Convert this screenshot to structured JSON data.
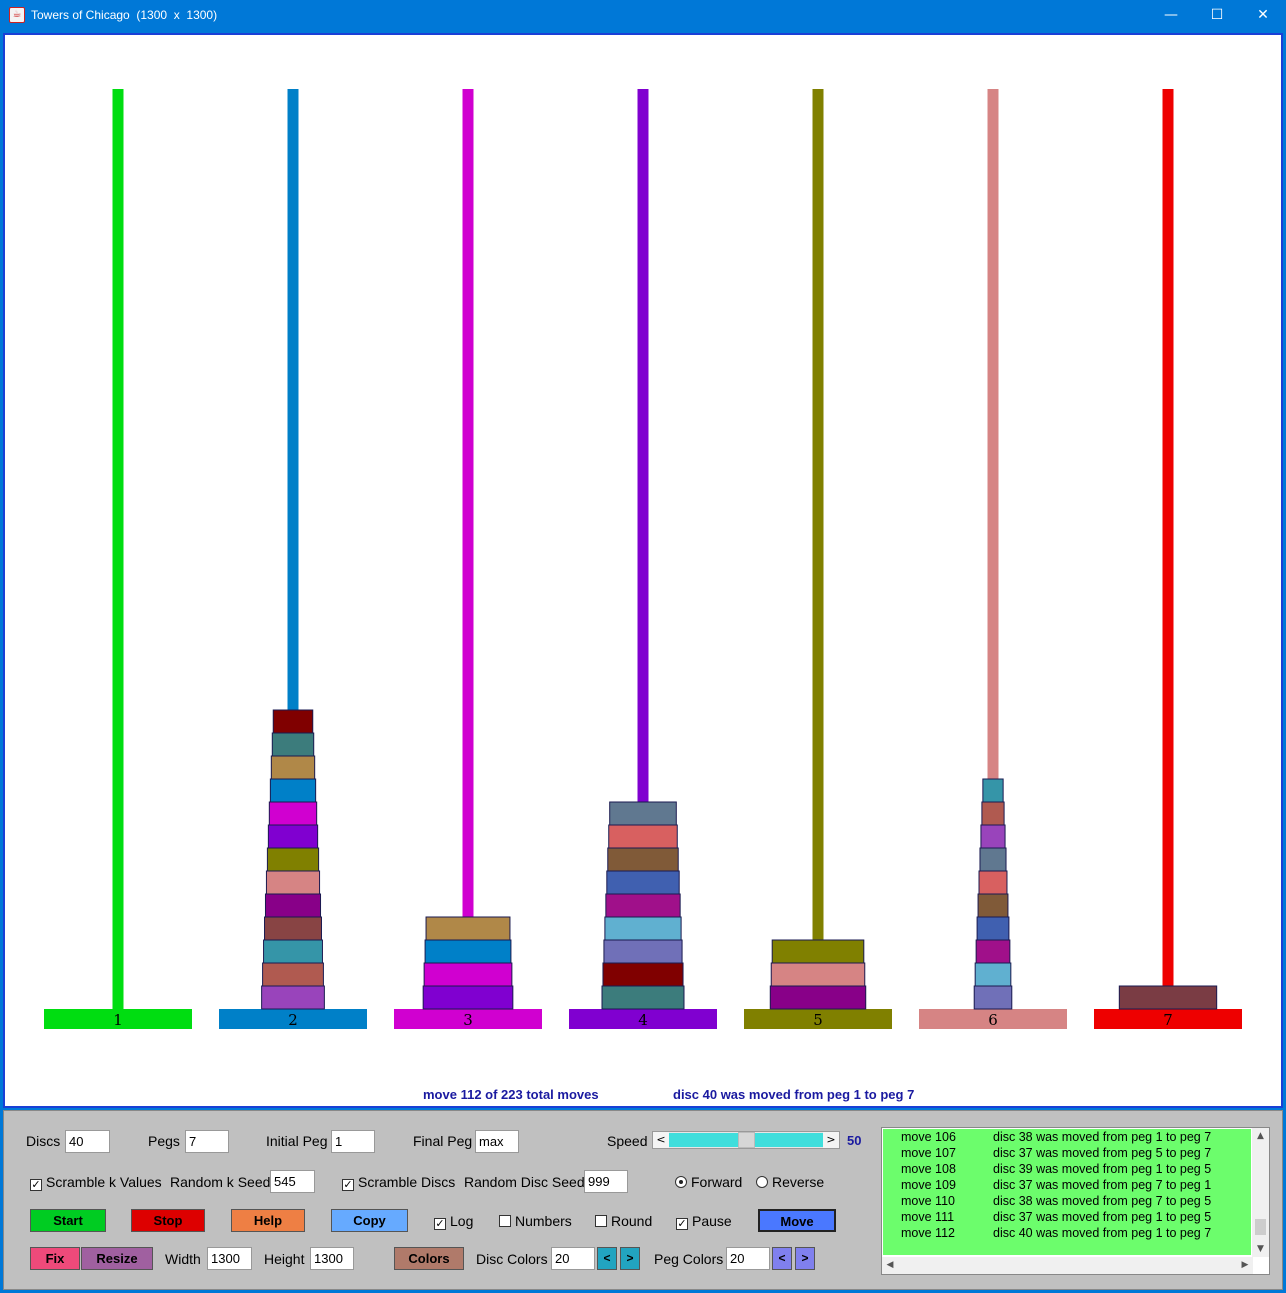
{
  "window": {
    "title": "Towers of Chicago  (1300  x  1300)",
    "icon": "java-cup-icon",
    "controls": {
      "minimize": "—",
      "maximize": "☐",
      "close": "✕"
    }
  },
  "puzzle": {
    "pegs": [
      {
        "label": "1",
        "color": "#00dd11",
        "discs": []
      },
      {
        "label": "2",
        "color": "#0080c8",
        "discs": [
          {
            "width": 0.424,
            "color": "#9944bb"
          },
          {
            "width": 0.411,
            "color": "#b05a50"
          },
          {
            "width": 0.398,
            "color": "#3595a8"
          },
          {
            "width": 0.385,
            "color": "#884444"
          },
          {
            "width": 0.372,
            "color": "#880088"
          },
          {
            "width": 0.359,
            "color": "#d68484"
          },
          {
            "width": 0.346,
            "color": "#808000"
          },
          {
            "width": 0.333,
            "color": "#8000d0"
          },
          {
            "width": 0.32,
            "color": "#d000d0"
          },
          {
            "width": 0.306,
            "color": "#0080c8"
          },
          {
            "width": 0.293,
            "color": "#b08848"
          },
          {
            "width": 0.28,
            "color": "#3c7c7c"
          },
          {
            "width": 0.267,
            "color": "#800000"
          }
        ]
      },
      {
        "label": "3",
        "color": "#d000d0",
        "discs": [
          {
            "width": 0.606,
            "color": "#8000d0"
          },
          {
            "width": 0.593,
            "color": "#d000d0"
          },
          {
            "width": 0.58,
            "color": "#0080c8"
          },
          {
            "width": 0.567,
            "color": "#b08848"
          }
        ]
      },
      {
        "label": "4",
        "color": "#8000d0",
        "discs": [
          {
            "width": 0.554,
            "color": "#3c7c7c"
          },
          {
            "width": 0.541,
            "color": "#800000"
          },
          {
            "width": 0.528,
            "color": "#7070b8"
          },
          {
            "width": 0.515,
            "color": "#60b0d0"
          },
          {
            "width": 0.502,
            "color": "#a0108a"
          },
          {
            "width": 0.489,
            "color": "#4060b0"
          },
          {
            "width": 0.476,
            "color": "#805a38"
          },
          {
            "width": 0.463,
            "color": "#d86060"
          },
          {
            "width": 0.45,
            "color": "#607890"
          }
        ]
      },
      {
        "label": "5",
        "color": "#808000",
        "discs": [
          {
            "width": 0.645,
            "color": "#880088"
          },
          {
            "width": 0.632,
            "color": "#d68484"
          },
          {
            "width": 0.619,
            "color": "#808000"
          }
        ]
      },
      {
        "label": "6",
        "color": "#d68484",
        "discs": [
          {
            "width": 0.254,
            "color": "#7070b8"
          },
          {
            "width": 0.241,
            "color": "#60b0d0"
          },
          {
            "width": 0.228,
            "color": "#a0108a"
          },
          {
            "width": 0.215,
            "color": "#4060b0"
          },
          {
            "width": 0.202,
            "color": "#805a38"
          },
          {
            "width": 0.189,
            "color": "#d86060"
          },
          {
            "width": 0.176,
            "color": "#607890"
          },
          {
            "width": 0.163,
            "color": "#9944bb"
          },
          {
            "width": 0.15,
            "color": "#b05a50"
          },
          {
            "width": 0.137,
            "color": "#3595a8"
          }
        ]
      },
      {
        "label": "7",
        "color": "#ee0000",
        "discs": [
          {
            "width": 0.658,
            "color": "#7a3c44"
          }
        ]
      }
    ]
  },
  "status": {
    "move_text": "move 112 of 223 total moves",
    "disc_text": "disc 40 was moved from peg 1 to peg 7"
  },
  "controls": {
    "discs_label": "Discs",
    "discs_value": "40",
    "pegs_label": "Pegs",
    "pegs_value": "7",
    "initial_peg_label": "Initial Peg",
    "initial_peg_value": "1",
    "final_peg_label": "Final Peg",
    "final_peg_value": "max",
    "speed_label": "Speed",
    "speed_value": "50",
    "speed_level": 0.5,
    "scramble_k_label": "Scramble k Values",
    "scramble_k_checked": true,
    "random_k_seed_label": "Random k Seed",
    "random_k_seed_value": "545",
    "scramble_discs_label": "Scramble Discs",
    "scramble_discs_checked": true,
    "random_disc_seed_label": "Random Disc Seed",
    "random_disc_seed_value": "999",
    "forward_label": "Forward",
    "forward_selected": true,
    "reverse_label": "Reverse",
    "reverse_selected": false,
    "start_label": "Start",
    "stop_label": "Stop",
    "help_label": "Help",
    "copy_label": "Copy",
    "log_label": "Log",
    "log_checked": true,
    "numbers_label": "Numbers",
    "numbers_checked": false,
    "round_label": "Round",
    "round_checked": false,
    "pause_label": "Pause",
    "pause_checked": true,
    "move_label": "Move",
    "fix_label": "Fix",
    "resize_label": "Resize",
    "width_label": "Width",
    "width_value": "1300",
    "height_label": "Height",
    "height_value": "1300",
    "colors_label": "Colors",
    "disc_colors_label": "Disc Colors",
    "disc_colors_value": "20",
    "peg_colors_label": "Peg Colors",
    "peg_colors_value": "20",
    "arrow_left": "<",
    "arrow_right": ">",
    "colors": {
      "start": "#00cc22",
      "stop": "#dd0000",
      "help": "#ee7f44",
      "copy": "#66aaff",
      "move": "#4a78ff",
      "fix": "#ee4a7a",
      "resize": "#a060a0",
      "colors_btn": "#b07a6a",
      "disc_arrows": "#22a4c0",
      "peg_arrows": "#8080ee"
    }
  },
  "log": {
    "entries": [
      {
        "move": "move 106",
        "text": "disc 38 was moved from peg 1 to peg 7"
      },
      {
        "move": "move 107",
        "text": "disc 37 was moved from peg 5 to peg 7"
      },
      {
        "move": "move 108",
        "text": "disc 39 was moved from peg 1 to peg 5"
      },
      {
        "move": "move 109",
        "text": "disc 37 was moved from peg 7 to peg 1"
      },
      {
        "move": "move 110",
        "text": "disc 38 was moved from peg 7 to peg 5"
      },
      {
        "move": "move 111",
        "text": "disc 37 was moved from peg 1 to peg 5"
      },
      {
        "move": "move 112",
        "text": "disc 40 was moved from peg 1 to peg 7"
      }
    ]
  }
}
